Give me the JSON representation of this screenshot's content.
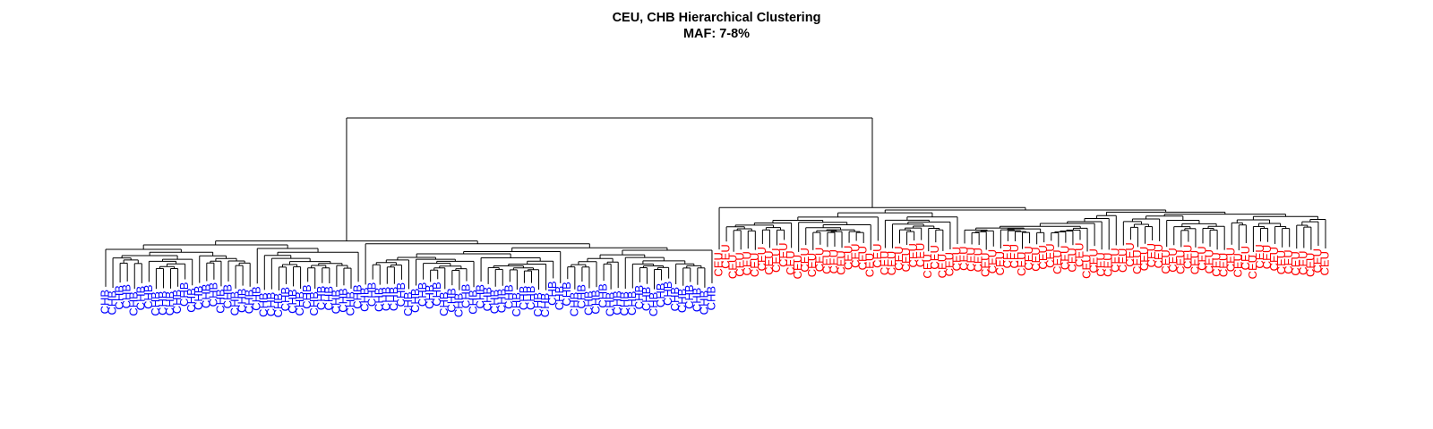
{
  "chart_data": {
    "type": "dendrogram",
    "title": "CEU, CHB Hierarchical Clustering",
    "subtitle": "MAF: 7-8%",
    "colors": {
      "CHB": "#0000ff",
      "CEU": "#ff0000",
      "branch": "#000000"
    },
    "clusters": [
      {
        "label": "CHB",
        "count": 85
      },
      {
        "label": "CEU",
        "count": 85
      }
    ]
  }
}
